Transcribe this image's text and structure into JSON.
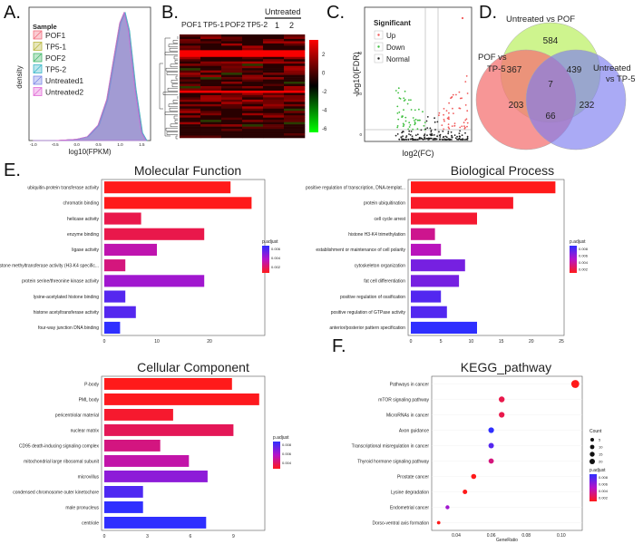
{
  "panels": {
    "a": "A.",
    "b": "B.",
    "c": "C.",
    "d": "D.",
    "e": "E.",
    "f": "F."
  },
  "colors": {
    "pof1": "#f26d7d",
    "tp51": "#b8b63c",
    "pof2": "#42b76a",
    "tp52": "#3ab7c9",
    "untr1": "#7a86e6",
    "untr2": "#e26ad7",
    "overlap": "#8f9dbf"
  },
  "chart_data": [
    {
      "id": "density",
      "type": "area",
      "xlabel": "log10(FPKM)",
      "ylabel": "density",
      "legend_title": "Sample",
      "legend": [
        "POF1",
        "TP5-1",
        "POF2",
        "TP5-2",
        "Untreated1",
        "Untreated2"
      ],
      "xticks": [
        "-1.0",
        "-0.5",
        "0.0",
        "0.5",
        "1.0",
        "1.5"
      ],
      "x": [
        -1.0,
        -0.5,
        0.0,
        0.25,
        0.5,
        0.7,
        0.85,
        1.0,
        1.1,
        1.2,
        1.35,
        1.5,
        1.6
      ],
      "y": [
        0.0,
        0.0,
        0.01,
        0.03,
        0.12,
        0.32,
        0.62,
        0.92,
        1.0,
        0.86,
        0.4,
        0.06,
        0.0
      ]
    },
    {
      "id": "heatmap",
      "type": "heatmap",
      "columns": [
        "POF1",
        "TP5-1",
        "POF2",
        "TP5-2"
      ],
      "group_label": "Untreated",
      "group_columns": [
        "1",
        "2"
      ],
      "colorbar_ticks": [
        "2",
        "0",
        "-2",
        "-4",
        "-6"
      ]
    },
    {
      "id": "volcano",
      "type": "scatter",
      "xlabel": "log2(FC)",
      "ylabel": "-log10(FDR)",
      "legend_title": "Significant",
      "legend": [
        "Up",
        "Down",
        "Normal"
      ],
      "yticks": [
        "0",
        "20",
        "40"
      ]
    },
    {
      "id": "venn",
      "type": "venn",
      "sets": [
        "Untreated vs POF",
        "POF vs TP-5",
        "Untreated vs TP-5"
      ],
      "values": {
        "only_untreated_pof": 584,
        "only_pof_tp5": 203,
        "only_untreated_tp5": 232,
        "pof_tp5__untreated_pof": 367,
        "untreated_pof__untreated_tp5": 439,
        "pof_tp5__untreated_tp5": 66,
        "all_three": 7
      }
    },
    {
      "id": "mf",
      "type": "bar",
      "title": "Molecular Function",
      "categories": [
        "ubiquitin-protein transferase activity",
        "chromatin binding",
        "helicase activity",
        "enzyme binding",
        "ligase activity",
        "histone methyltransferase activity (H3-K4 specific...",
        "protein serine/threonine kinase activity",
        "lysine-acetylated histone binding",
        "histone acetyltransferase activity",
        "four-way junction DNA binding"
      ],
      "values": [
        24,
        28,
        7,
        19,
        10,
        4,
        19,
        4,
        6,
        3
      ],
      "padj": [
        0.001,
        0.001,
        0.002,
        0.002,
        0.004,
        0.003,
        0.005,
        0.007,
        0.007,
        0.008
      ],
      "xticks": [
        "0",
        "10",
        "20"
      ],
      "xlim": [
        0,
        30
      ],
      "legend_title": "p.adjust",
      "legend_ticks": [
        "0.006",
        "0.004",
        "0.002"
      ]
    },
    {
      "id": "bp",
      "type": "bar",
      "title": "Biological Process",
      "categories": [
        "positive regulation of transcription, DNA-templat...",
        "protein ubiquitination",
        "cell cycle arrest",
        "histone H3-K4 trimethylation",
        "establishment or maintenance of cell polarity",
        "cytoskeleton organization",
        "fat cell differentiation",
        "positive regulation of ossification",
        "positive regulation of GTPase activity",
        "anterior/posterior pattern specification"
      ],
      "values": [
        24,
        17,
        11,
        4,
        5,
        9,
        8,
        5,
        6,
        11
      ],
      "padj": [
        0.0005,
        0.0008,
        0.001,
        0.003,
        0.004,
        0.006,
        0.006,
        0.007,
        0.007,
        0.008
      ],
      "xticks": [
        "0",
        "5",
        "10",
        "15",
        "20",
        "25"
      ],
      "xlim": [
        0,
        25
      ],
      "legend_title": "p.adjust",
      "legend_ticks": [
        "0.008",
        "0.006",
        "0.004",
        "0.002"
      ]
    },
    {
      "id": "cc",
      "type": "bar",
      "title": "Cellular Component",
      "categories": [
        "P-body",
        "PML body",
        "pericentriolar material",
        "nuclear matrix",
        "CD95 death-inducing signaling complex",
        "mitochondrial large ribosomal subunit",
        "microvillus",
        "condensed chromosome outer kinetochore",
        "male pronucleus",
        "centriole"
      ],
      "values": [
        8.9,
        10.8,
        4.8,
        9.0,
        3.9,
        5.9,
        7.2,
        2.7,
        2.7,
        7.1
      ],
      "padj": [
        0.0005,
        0.0006,
        0.001,
        0.002,
        0.003,
        0.004,
        0.006,
        0.008,
        0.009,
        0.009
      ],
      "xticks": [
        "0",
        "3",
        "6",
        "9"
      ],
      "xlim": [
        0,
        11
      ],
      "legend_title": "p.adjust",
      "legend_ticks": [
        "0.008",
        "0.006",
        "0.004"
      ]
    },
    {
      "id": "kegg",
      "type": "scatter",
      "title": "KEGG_pathway",
      "xlabel": "GeneRatio",
      "categories": [
        "Pathways in cancer",
        "mTOR signaling pathway",
        "MicroRNAs in cancer",
        "Axon guidance",
        "Transcriptional misregulation in cancer",
        "Thyroid hormone signaling pathway",
        "Prostate cancer",
        "Lysine degradation",
        "Endometrial cancer",
        "Dorso-ventral axis formation"
      ],
      "x": [
        0.108,
        0.066,
        0.066,
        0.06,
        0.06,
        0.06,
        0.05,
        0.045,
        0.035,
        0.03
      ],
      "count": [
        30,
        13,
        12,
        11,
        10,
        9,
        8,
        6,
        4,
        2
      ],
      "padj": [
        0.001,
        0.002,
        0.002,
        0.008,
        0.007,
        0.003,
        0.001,
        0.001,
        0.005,
        0.001
      ],
      "xticks": [
        "0.04",
        "0.06",
        "0.08",
        "0.10"
      ],
      "xlim": [
        0.026,
        0.112
      ],
      "legend_count_title": "Count",
      "legend_count": [
        "5",
        "10",
        "15",
        "20"
      ],
      "legend_title": "p.adjust",
      "legend_ticks": [
        "0.008",
        "0.006",
        "0.004",
        "0.002"
      ]
    }
  ]
}
